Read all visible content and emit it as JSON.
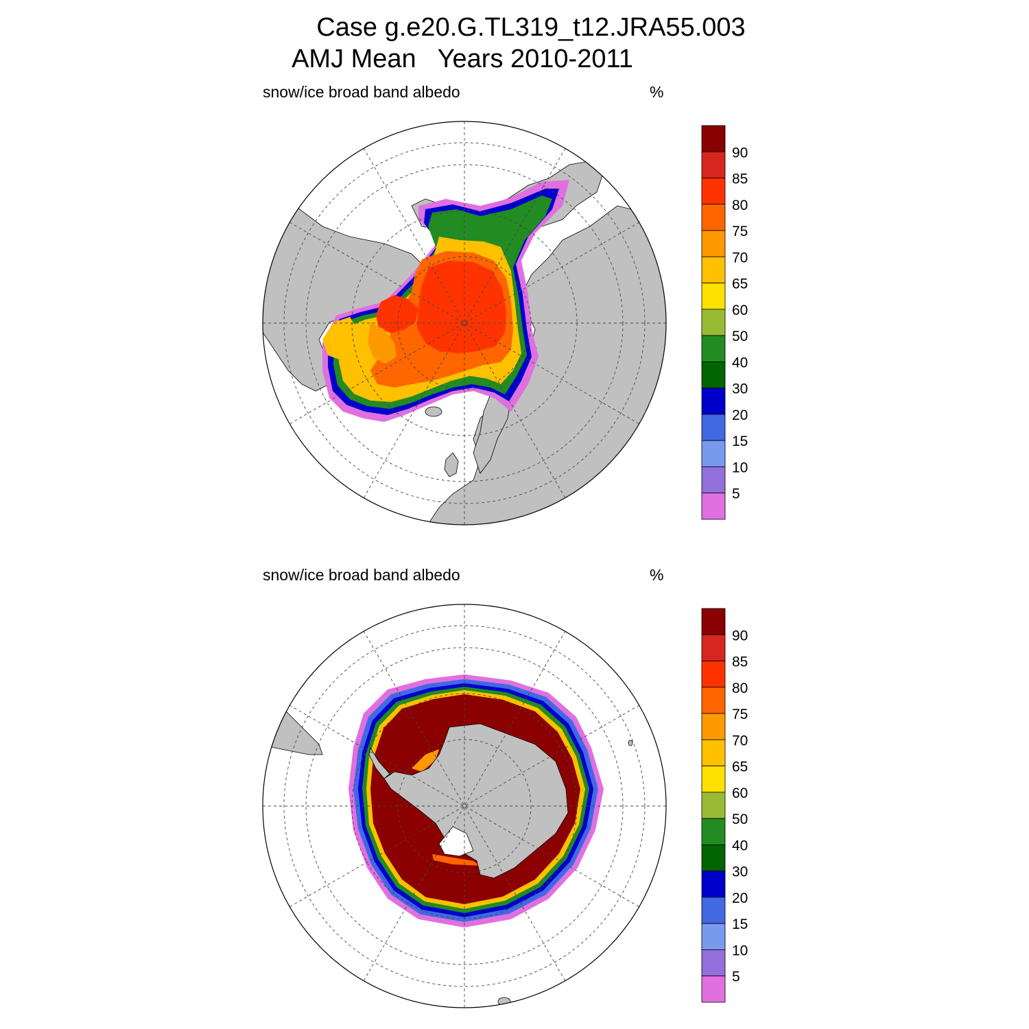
{
  "header": {
    "case_line": "Case g.e20.G.TL319_t12.JRA55.003",
    "period_line": "AMJ Mean   Years 2010-2011"
  },
  "panels": [
    {
      "id": "north",
      "variable": "snow/ice broad band albedo",
      "units": "%"
    },
    {
      "id": "south",
      "variable": "snow/ice broad band albedo",
      "units": "%"
    }
  ],
  "colorbar": {
    "labels": [
      "90",
      "85",
      "80",
      "75",
      "70",
      "65",
      "60",
      "50",
      "40",
      "30",
      "20",
      "15",
      "10",
      "5"
    ],
    "colors": [
      "#8b0000",
      "#d7261e",
      "#ff3300",
      "#ff6600",
      "#ff9900",
      "#ffc000",
      "#ffe000",
      "#99bb33",
      "#228b22",
      "#006400",
      "#0000cd",
      "#4169e1",
      "#7799ee",
      "#9370db",
      "#e070e0"
    ]
  },
  "colors": {
    "land": "#c0c0c0",
    "ocean": "#ffffff",
    "coast": "#000000",
    "grid": "#444444"
  }
}
